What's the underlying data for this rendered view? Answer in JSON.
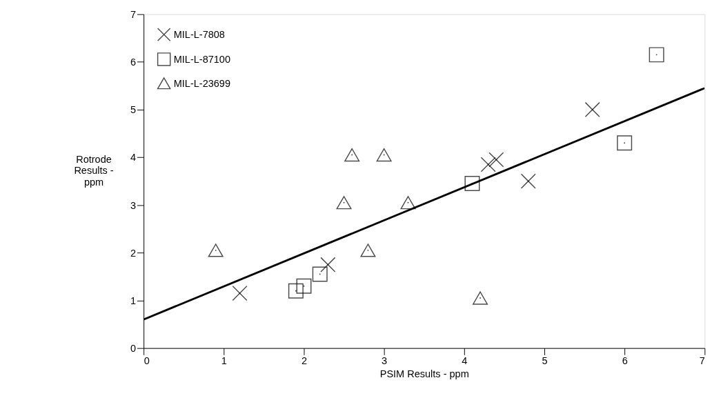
{
  "chart_data": {
    "type": "scatter",
    "xlabel": "PSIM Results - ppm",
    "ylabel": "Rotrode\nResults -\nppm",
    "xlim": [
      0,
      7
    ],
    "ylim": [
      0,
      7
    ],
    "xticks": [
      0,
      1,
      2,
      3,
      4,
      5,
      6,
      7
    ],
    "yticks": [
      0,
      1,
      2,
      3,
      4,
      5,
      6,
      7
    ],
    "grid": false,
    "legend": "top left",
    "series": [
      {
        "name": "MIL-L-7808",
        "color": "#000000",
        "marker": "cross",
        "x": [
          1.2,
          2.3,
          4.3,
          4.4,
          4.8,
          5.6
        ],
        "values": [
          1.15,
          1.75,
          3.85,
          3.95,
          3.5,
          5.0
        ]
      },
      {
        "name": "MIL-L-87100",
        "color": "#000000",
        "marker": "square",
        "x": [
          1.9,
          2.0,
          2.2,
          4.1,
          6.0,
          6.4
        ],
        "values": [
          1.2,
          1.3,
          1.55,
          3.45,
          4.3,
          6.15
        ]
      },
      {
        "name": "MIL-L-23699",
        "color": "#000000",
        "marker": "triangle",
        "x": [
          0.9,
          2.6,
          3.0,
          2.5,
          3.3,
          2.8,
          4.2
        ],
        "values": [
          2.05,
          4.05,
          4.05,
          3.05,
          3.05,
          2.05,
          1.05
        ]
      },
      {
        "type": "line",
        "color": "#000000",
        "line_style": "solid",
        "x": [
          0,
          7
        ],
        "values": [
          0.6,
          5.45
        ]
      }
    ]
  }
}
